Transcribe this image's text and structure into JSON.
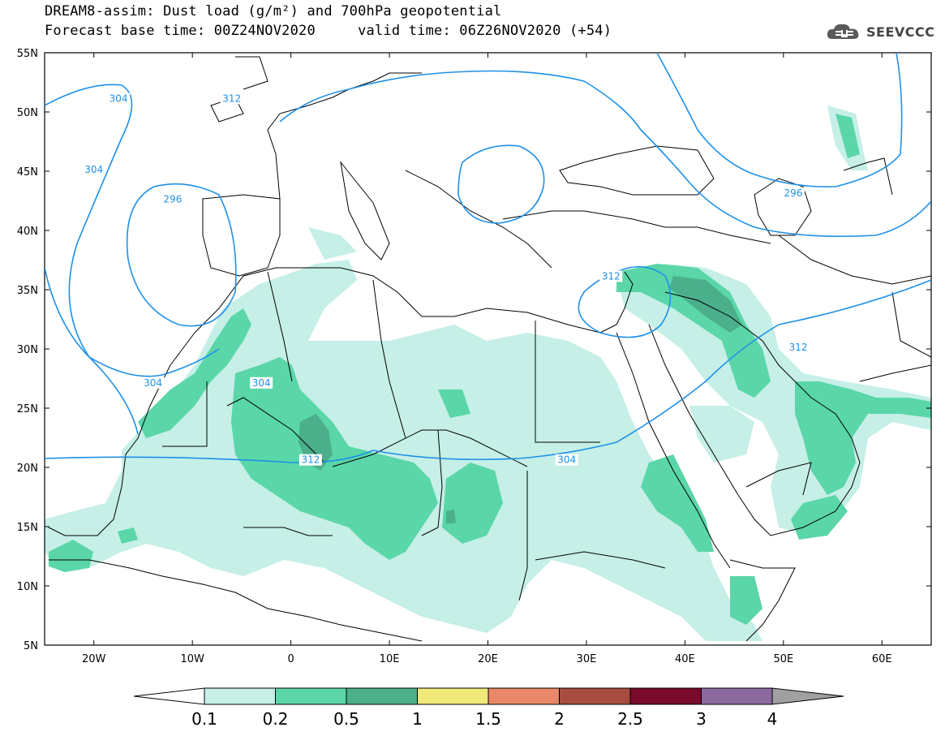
{
  "header": {
    "title_line1": "DREAM8-assim: Dust load (g/m²) and 700hPa geopotential",
    "title_line2": "Forecast base time: 00Z24NOV2020     valid time: 06Z26NOV2020 (+54)",
    "logo_text": "SEEVCCC"
  },
  "map": {
    "lon_range": [
      -25,
      65
    ],
    "lat_range": [
      5,
      55
    ],
    "lat_labels": [
      "55N",
      "50N",
      "45N",
      "40N",
      "35N",
      "30N",
      "25N",
      "20N",
      "15N",
      "10N",
      "5N"
    ],
    "lon_labels": [
      "20W",
      "10W",
      "0",
      "10E",
      "20E",
      "30E",
      "40E",
      "50E",
      "60E"
    ],
    "contour_labels": [
      "304",
      "304",
      "312",
      "296",
      "296",
      "304",
      "304",
      "312",
      "304",
      "312",
      "312"
    ],
    "colors": {
      "geopotential_line": "#1e90e8",
      "dust_level_1": "#c5efe7",
      "dust_level_2": "#5ad6a8",
      "dust_level_3": "#4caf8c"
    }
  },
  "colorbar": {
    "labels": [
      "0.1",
      "0.2",
      "0.5",
      "1",
      "1.5",
      "2",
      "2.5",
      "3",
      "4"
    ],
    "colors": [
      "#c5efe7",
      "#5ad6a8",
      "#4caf8c",
      "#f0e878",
      "#e88868",
      "#a84c40",
      "#7a0a2e",
      "#8c6aa0"
    ],
    "left_arrow_color": "#ffffff",
    "right_arrow_color": "#a0a0a0"
  }
}
